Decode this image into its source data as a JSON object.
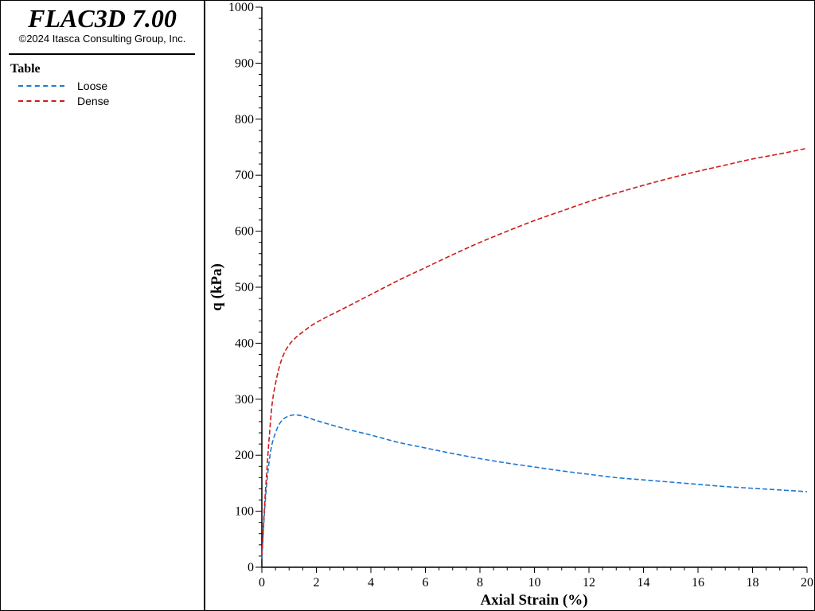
{
  "app": {
    "title": "FLAC3D 7.00",
    "copyright": "©2024 Itasca Consulting Group, Inc."
  },
  "legend": {
    "heading": "Table"
  },
  "chart_data": {
    "type": "line",
    "xlabel": "Axial Strain (%)",
    "ylabel": "q (kPa)",
    "xlim": [
      0,
      20
    ],
    "ylim": [
      0,
      1000
    ],
    "x_ticks": [
      0,
      2,
      4,
      6,
      8,
      10,
      12,
      14,
      16,
      18,
      20
    ],
    "y_ticks": [
      0,
      100,
      200,
      300,
      400,
      500,
      600,
      700,
      800,
      900,
      1000
    ],
    "grid": false,
    "legend_position": "left-panel",
    "series": [
      {
        "name": "Loose",
        "color": "#1f78d4",
        "line_style": "dashed",
        "x": [
          0,
          0.1,
          0.2,
          0.3,
          0.4,
          0.6,
          0.8,
          1.0,
          1.2,
          1.5,
          2,
          3,
          4,
          5,
          6,
          7,
          8,
          9,
          10,
          11,
          12,
          13,
          14,
          15,
          16,
          17,
          18,
          19,
          20
        ],
        "y": [
          15,
          100,
          160,
          200,
          225,
          252,
          265,
          270,
          272,
          270,
          262,
          248,
          236,
          223,
          213,
          203,
          194,
          186,
          179,
          172,
          166,
          160,
          156,
          152,
          148,
          144,
          141,
          138,
          135
        ]
      },
      {
        "name": "Dense",
        "color": "#d11a1a",
        "line_style": "dashed",
        "x": [
          0,
          0.1,
          0.2,
          0.3,
          0.4,
          0.6,
          0.8,
          1.0,
          1.2,
          1.5,
          2,
          3,
          4,
          5,
          6,
          7,
          8,
          9,
          10,
          11,
          12,
          13,
          14,
          15,
          16,
          17,
          18,
          19,
          20
        ],
        "y": [
          20,
          110,
          185,
          250,
          300,
          350,
          380,
          397,
          408,
          420,
          437,
          462,
          487,
          512,
          535,
          558,
          580,
          600,
          619,
          636,
          653,
          668,
          682,
          695,
          707,
          718,
          729,
          738,
          748
        ]
      }
    ]
  }
}
